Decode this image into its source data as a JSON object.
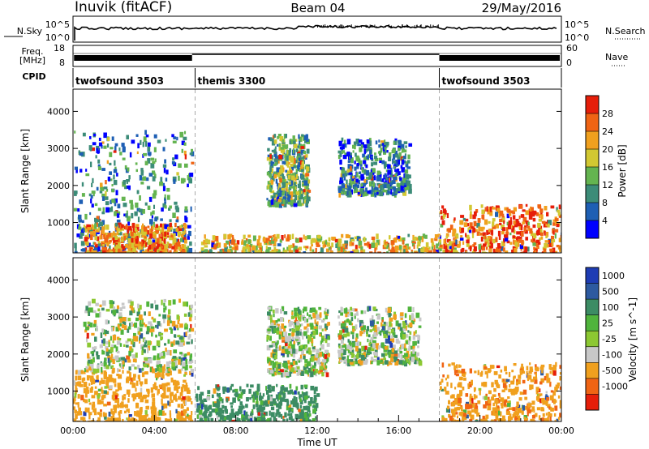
{
  "header": {
    "station": "Inuvik (fitACF)",
    "beam": "Beam 04",
    "date": "29/May/2016"
  },
  "top_panels": {
    "nsky_label": "N.Sky",
    "nsky_ticks": [
      "10^5",
      "10^0"
    ],
    "nsearch_label": "N.Search",
    "nsearch_ticks": [
      "10^5",
      "10^0"
    ],
    "freq_label": "Freq.",
    "freq_unit": "[MHz]",
    "freq_ticks": [
      "18",
      "8"
    ],
    "nave_label": "Nave",
    "nave_ticks": [
      "60",
      "0"
    ],
    "cpid_label": "CPID",
    "cpid_segments": [
      {
        "label": "twofsound 3503",
        "start_hour": 0,
        "end_hour": 6
      },
      {
        "label": "themis 3300",
        "start_hour": 6,
        "end_hour": 18
      },
      {
        "label": "twofsound 3503",
        "start_hour": 18,
        "end_hour": 24
      }
    ]
  },
  "chart_data": [
    {
      "type": "heatmap",
      "name": "Power",
      "ylabel": "Slant Range [km]",
      "yticks": [
        "1000",
        "2000",
        "3000",
        "4000"
      ],
      "ylim": [
        180,
        4600
      ],
      "xlim": [
        0,
        24
      ],
      "colorbar_label": "Power [dB]",
      "colorbar_ticks": [
        "4",
        "8",
        "12",
        "16",
        "20",
        "24",
        "28"
      ],
      "colorbar_range": [
        0,
        30
      ],
      "colorbar_colors": [
        "#0000ff",
        "#1e5fb4",
        "#3c8c78",
        "#64b450",
        "#d2c832",
        "#f0a01e",
        "#f06414",
        "#e61e0a"
      ],
      "regions": [
        {
          "x": [
            0.0,
            5.8
          ],
          "y": [
            200,
            3500
          ],
          "value": 8
        },
        {
          "x": [
            0.5,
            5.5
          ],
          "y": [
            200,
            1000
          ],
          "value": 22
        },
        {
          "x": [
            6.2,
            18.0
          ],
          "y": [
            200,
            700
          ],
          "value": 18
        },
        {
          "x": [
            9.5,
            11.5
          ],
          "y": [
            1500,
            3400
          ],
          "value": 12
        },
        {
          "x": [
            13.0,
            16.5
          ],
          "y": [
            1800,
            3300
          ],
          "value": 8
        },
        {
          "x": [
            18.0,
            24.0
          ],
          "y": [
            200,
            1500
          ],
          "value": 24
        }
      ]
    },
    {
      "type": "heatmap",
      "name": "Velocity",
      "ylabel": "Slant Range [km]",
      "yticks": [
        "1000",
        "2000",
        "3000",
        "4000"
      ],
      "ylim": [
        180,
        4600
      ],
      "xlim": [
        0,
        24
      ],
      "xticks": [
        "00:00",
        "04:00",
        "08:00",
        "12:00",
        "16:00",
        "20:00",
        "00:00"
      ],
      "xlabel": "Time UT",
      "colorbar_label": "Velocity [m s^-1]",
      "colorbar_ticks": [
        "1000",
        "500",
        "100",
        "25",
        "-25",
        "-100",
        "-500",
        "-1000"
      ],
      "colorbar_colors": [
        "#1e3cb4",
        "#2d5aa0",
        "#3c8c64",
        "#50b43c",
        "#8cc832",
        "#c8c8c8",
        "#f0a01e",
        "#f06414",
        "#e61e0a"
      ],
      "regions": [
        {
          "x": [
            0.0,
            5.8
          ],
          "y": [
            200,
            1600
          ],
          "value": -300
        },
        {
          "x": [
            0.5,
            5.8
          ],
          "y": [
            1600,
            3500
          ],
          "value": 0
        },
        {
          "x": [
            6.0,
            12.0
          ],
          "y": [
            200,
            1200
          ],
          "value": 200
        },
        {
          "x": [
            9.5,
            12.5
          ],
          "y": [
            1500,
            3300
          ],
          "value": 0
        },
        {
          "x": [
            13.0,
            17.0
          ],
          "y": [
            1800,
            3300
          ],
          "value": 0
        },
        {
          "x": [
            18.0,
            24.0
          ],
          "y": [
            200,
            1800
          ],
          "value": -400
        }
      ]
    }
  ],
  "colors": {
    "axis": "#000000",
    "background": "#ffffff",
    "divider": "#aaaaaa"
  }
}
